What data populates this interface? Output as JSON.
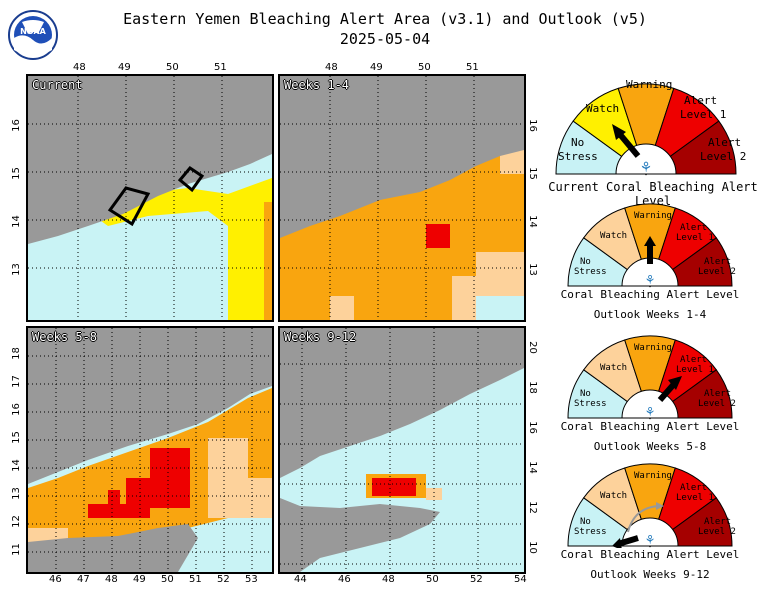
{
  "header": {
    "title_line1": "Eastern Yemen Bleaching Alert Area (v3.1) and Outlook (v5)",
    "title_line2": "2025-05-04",
    "logo_text": "NOAA"
  },
  "panels": {
    "current": {
      "label": "Current"
    },
    "weeks_1_4": {
      "label": "Weeks 1-4"
    },
    "weeks_5_8": {
      "label": "Weeks 5-8"
    },
    "weeks_9_12": {
      "label": "Weeks 9-12"
    }
  },
  "axes": {
    "top_lon_ticks": [
      "48",
      "49",
      "50",
      "51"
    ],
    "current_lat_ticks": [
      "16",
      "15",
      "14",
      "13"
    ],
    "weeks14_lat_ticks": [
      "16",
      "15",
      "14",
      "13"
    ],
    "weeks58_lat_ticks": [
      "18",
      "17",
      "16",
      "15",
      "14",
      "13",
      "12",
      "11"
    ],
    "weeks58_lon_ticks": [
      "46",
      "47",
      "48",
      "49",
      "50",
      "51",
      "52",
      "53"
    ],
    "weeks912_lat_ticks": [
      "20",
      "18",
      "16",
      "14",
      "12",
      "10"
    ],
    "weeks912_lon_ticks": [
      "44",
      "46",
      "48",
      "50",
      "52",
      "54"
    ]
  },
  "legend_levels": {
    "no_stress": [
      "No",
      "Stress"
    ],
    "watch": "Watch",
    "warning": "Warning",
    "alert1": [
      "Alert",
      "Level 1"
    ],
    "alert2": [
      "Alert",
      "Level 2"
    ]
  },
  "legend_colors": {
    "no_stress": "#c8f2f5",
    "watch_current": "#fff000",
    "watch_outlook": "#fdd29b",
    "warning": "#f9a50f",
    "alert1": "#ee0000",
    "alert2": "#a50000",
    "land": "#999999",
    "water": "#c9f3f5"
  },
  "gauges": [
    {
      "title": "Current Coral Bleaching Alert Level",
      "subtitle": "",
      "level": "Watch"
    },
    {
      "title": "Coral Bleaching Alert Level",
      "subtitle": "Outlook Weeks 1-4",
      "level": "Warning"
    },
    {
      "title": "Coral Bleaching Alert Level",
      "subtitle": "Outlook Weeks 5-8",
      "level": "Alert Level 1"
    },
    {
      "title": "Coral Bleaching Alert Level",
      "subtitle": "Outlook Weeks 9-12",
      "level": "No Stress"
    }
  ]
}
